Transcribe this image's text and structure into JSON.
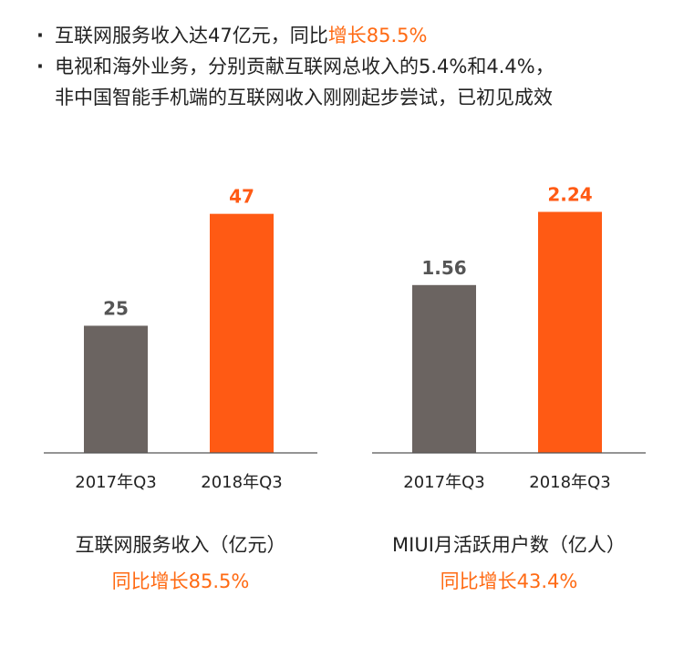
{
  "bullets": [
    {
      "text": "互联网服务收入达47亿元，同比",
      "highlight": "增长85.5%"
    },
    {
      "line1": "电视和海外业务，分别贡献互联网总收入的5.4%和4.4%，",
      "line2": "非中国智能手机端的互联网收入刚刚起步尝试，已初见成效"
    }
  ],
  "bullet_marker": "·",
  "colors": {
    "gray": "#6b6461",
    "orange": "#ff5a14",
    "axis": "#555555",
    "growth_text": "#ff6a13"
  },
  "chart_data": [
    {
      "type": "bar",
      "title": "互联网服务收入（亿元）",
      "growth": "同比增长85.5%",
      "categories": [
        "2017年Q3",
        "2018年Q3"
      ],
      "values": [
        25,
        47
      ],
      "labels": [
        "25",
        "47"
      ],
      "ylim": [
        0,
        55
      ]
    },
    {
      "type": "bar",
      "title": "MIUI月活跃用户数（亿人）",
      "growth": "同比增长43.4%",
      "categories": [
        "2017年Q3",
        "2018年Q3"
      ],
      "values": [
        1.56,
        2.24
      ],
      "labels": [
        "1.56",
        "2.24"
      ],
      "ylim": [
        0,
        2.6
      ]
    }
  ]
}
